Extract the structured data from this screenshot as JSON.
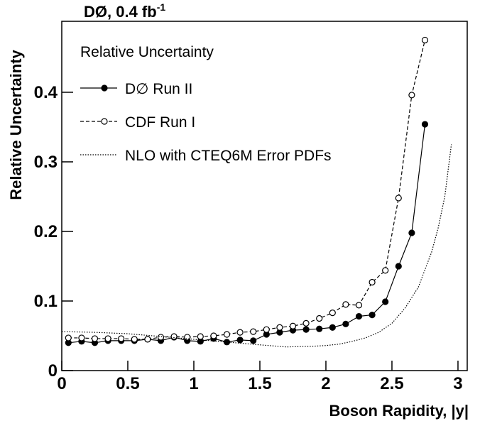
{
  "chart_data": {
    "type": "line",
    "title": "DØ, 0.4 fb",
    "title_superscript": "-1",
    "x_label": "Boson Rapidity, |y|",
    "y_label": "Relative Uncertainty",
    "legend_title": "Relative Uncertainty",
    "legend": "upper-left",
    "xlim": [
      0,
      3.07
    ],
    "ylim": [
      0,
      0.502
    ],
    "xticks": [
      0,
      0.5,
      1,
      1.5,
      2,
      2.5,
      3
    ],
    "yticks": [
      0,
      0.1,
      0.2,
      0.3,
      0.4
    ],
    "series": [
      {
        "name": "D∅ Run II",
        "color": "#000000",
        "line_style": "solid",
        "marker": "filled",
        "x": [
          0.05,
          0.15,
          0.25,
          0.35,
          0.45,
          0.55,
          0.65,
          0.75,
          0.85,
          0.95,
          1.05,
          1.15,
          1.25,
          1.35,
          1.45,
          1.55,
          1.65,
          1.75,
          1.85,
          1.95,
          2.05,
          2.15,
          2.25,
          2.35,
          2.45,
          2.55,
          2.65,
          2.75
        ],
        "values": [
          0.04,
          0.042,
          0.04,
          0.043,
          0.043,
          0.043,
          0.045,
          0.043,
          0.048,
          0.043,
          0.042,
          0.046,
          0.041,
          0.044,
          0.043,
          0.052,
          0.055,
          0.058,
          0.059,
          0.06,
          0.062,
          0.067,
          0.078,
          0.08,
          0.099,
          0.15,
          0.198,
          0.354
        ]
      },
      {
        "name": "CDF Run I",
        "color": "#000000",
        "line_style": "dashed",
        "marker": "open",
        "x": [
          0.05,
          0.15,
          0.25,
          0.35,
          0.45,
          0.55,
          0.65,
          0.75,
          0.85,
          0.95,
          1.05,
          1.15,
          1.25,
          1.35,
          1.45,
          1.55,
          1.65,
          1.75,
          1.85,
          1.95,
          2.05,
          2.15,
          2.25,
          2.35,
          2.45,
          2.55,
          2.65,
          2.75
        ],
        "values": [
          0.047,
          0.047,
          0.046,
          0.046,
          0.046,
          0.045,
          0.045,
          0.048,
          0.049,
          0.048,
          0.049,
          0.05,
          0.052,
          0.055,
          0.056,
          0.059,
          0.062,
          0.064,
          0.068,
          0.075,
          0.083,
          0.095,
          0.094,
          0.127,
          0.144,
          0.248,
          0.396,
          0.475
        ]
      },
      {
        "name": "NLO with CTEQ6M Error PDFs",
        "color": "#000000",
        "line_style": "dotted",
        "marker": "none",
        "x": [
          0,
          0.25,
          0.5,
          0.75,
          1.0,
          1.25,
          1.5,
          1.7,
          1.9,
          2.0,
          2.1,
          2.2,
          2.3,
          2.4,
          2.5,
          2.6,
          2.7,
          2.8,
          2.85,
          2.9,
          2.95
        ],
        "values": [
          0.056,
          0.055,
          0.053,
          0.049,
          0.045,
          0.041,
          0.037,
          0.034,
          0.035,
          0.036,
          0.038,
          0.042,
          0.047,
          0.055,
          0.068,
          0.09,
          0.12,
          0.17,
          0.205,
          0.25,
          0.325
        ]
      }
    ]
  }
}
